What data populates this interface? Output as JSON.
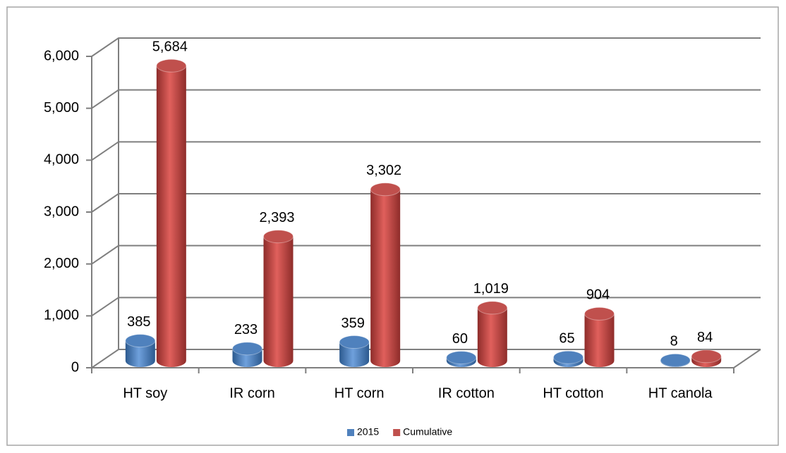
{
  "chart_data": {
    "type": "bar3d",
    "categories": [
      "HT soy",
      "IR corn",
      "HT corn",
      "IR cotton",
      "HT cotton",
      "HT canola"
    ],
    "series": [
      {
        "name": "2015",
        "color": "#4f81bd",
        "values": [
          385,
          233,
          359,
          60,
          65,
          8
        ]
      },
      {
        "name": "Cumulative",
        "color": "#c0504d",
        "values": [
          5684,
          2393,
          3302,
          1019,
          904,
          84
        ],
        "value_labels": [
          "5,684",
          "2,393",
          "3,302",
          "1,019",
          "904",
          "84"
        ]
      }
    ],
    "ylim": [
      0,
      6000
    ],
    "yticks": [
      0,
      {
        "value": 1000,
        "label": "1,000"
      },
      {
        "value": 2000,
        "label": "2,000"
      },
      {
        "value": 3000,
        "label": "3,000"
      },
      {
        "value": 4000,
        "label": "4,000"
      },
      {
        "value": 5000,
        "label": "5,000"
      },
      {
        "value": 6000,
        "label": "6,000"
      }
    ],
    "grid": true,
    "legend": "bottom"
  }
}
